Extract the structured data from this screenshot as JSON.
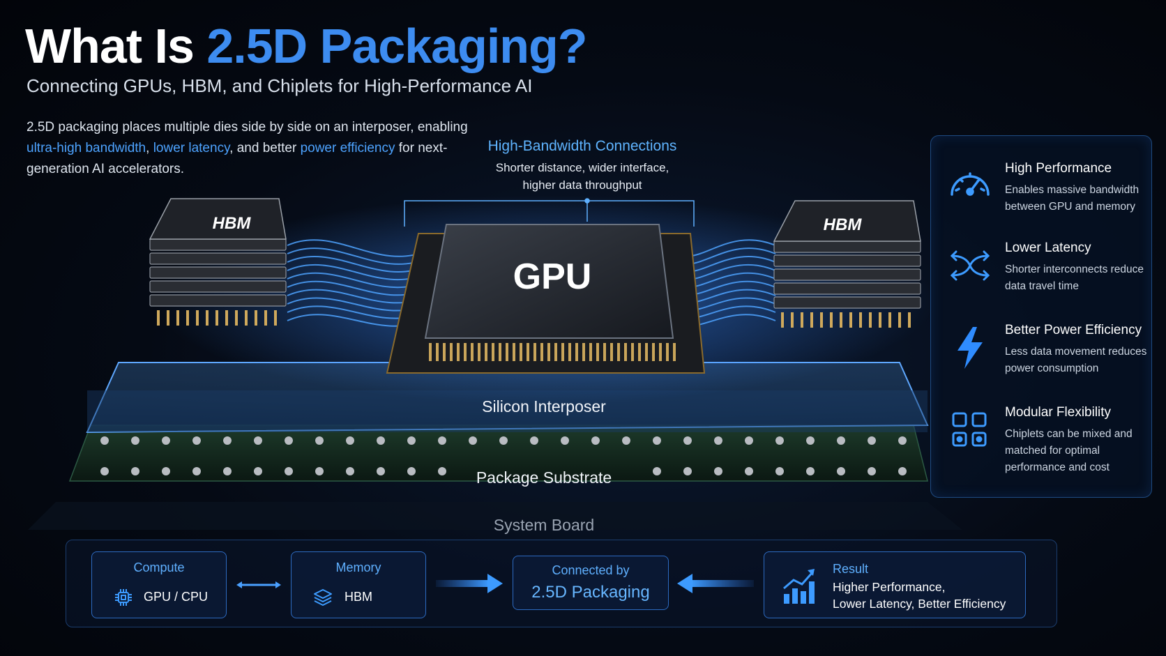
{
  "header": {
    "title_plain": "What Is ",
    "title_accent": "2.5D Packaging?",
    "subtitle": "Connecting GPUs, HBM, and Chiplets for High-Performance AI"
  },
  "intro": {
    "part1": "2.5D packaging places multiple dies side by side on an interposer, enabling ",
    "hl1": "ultra-high bandwidth",
    "sep1": ", ",
    "hl2": "lower latency",
    "part2": ", and better ",
    "hl3": "power efficiency",
    "part3": " for next-generation AI accelerators."
  },
  "callout": {
    "title": "High-Bandwidth Connections",
    "line1": "Shorter distance, wider interface,",
    "line2": "higher data throughput"
  },
  "diagram": {
    "hbm_left": "HBM",
    "hbm_right": "HBM",
    "gpu": "GPU",
    "interposer": "Silicon Interposer",
    "substrate": "Package Substrate",
    "board": "System Board"
  },
  "benefits": [
    {
      "title": "High Performance",
      "desc": "Enables massive bandwidth between GPU and memory",
      "icon": "speedometer-icon"
    },
    {
      "title": "Lower Latency",
      "desc": "Shorter interconnects reduce data travel time",
      "icon": "arrows-converge-icon"
    },
    {
      "title": "Better Power Efficiency",
      "desc": "Less data movement reduces power consumption",
      "icon": "lightning-icon"
    },
    {
      "title": "Modular Flexibility",
      "desc": "Chiplets can be mixed and matched for optimal performance and cost",
      "icon": "modules-icon"
    }
  ],
  "flow": {
    "compute": {
      "head": "Compute",
      "value": "GPU / CPU",
      "icon": "chip-icon"
    },
    "memory": {
      "head": "Memory",
      "value": "HBM",
      "icon": "layers-icon"
    },
    "connected": {
      "head": "Connected by",
      "value": "2.5D Packaging"
    },
    "result": {
      "head": "Result",
      "line1": "Higher Performance,",
      "line2": "Lower Latency, Better Efficiency",
      "icon": "growth-chart-icon"
    }
  },
  "colors": {
    "accent": "#3d8cf0",
    "highlight": "#4da3ff",
    "background": "#050a14"
  }
}
